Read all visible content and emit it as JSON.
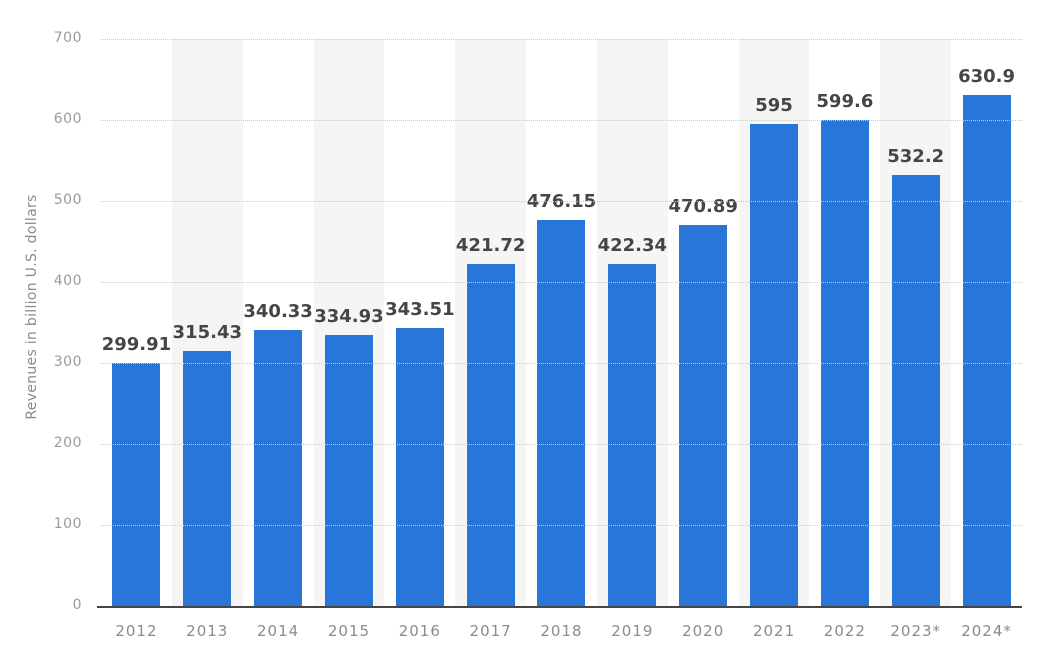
{
  "chart_data": {
    "type": "bar",
    "categories": [
      "2012",
      "2013",
      "2014",
      "2015",
      "2016",
      "2017",
      "2018",
      "2019",
      "2020",
      "2021",
      "2022",
      "2023*",
      "2024*"
    ],
    "values": [
      299.91,
      315.43,
      340.33,
      334.93,
      343.51,
      421.72,
      476.15,
      422.34,
      470.89,
      595,
      599.6,
      532.2,
      630.9
    ],
    "value_labels": [
      "299.91",
      "315.43",
      "340.33",
      "334.93",
      "343.51",
      "421.72",
      "476.15",
      "422.34",
      "470.89",
      "595",
      "599.6",
      "532.2",
      "630.9"
    ],
    "xlabel": "",
    "ylabel": "Revenues in billion U.S. dollars",
    "ylim": [
      0,
      700
    ],
    "yticks": [
      0,
      100,
      200,
      300,
      400,
      500,
      600,
      700
    ],
    "grid": "horizontal-dotted",
    "legend": "none",
    "stripe_pattern": "alternating columns, gray on 2013/2015/2017/2019/2021/2023*",
    "colors": {
      "bar": "#2776d8",
      "value_label": "#454545",
      "tick_label": "#9b9b9b",
      "x_label": "#8b8b8b",
      "axis_title": "#8b8b8b",
      "gridline": "#c9c9c9",
      "axis_line": "#454545",
      "stripe": "#f5f5f5",
      "background": "#ffffff"
    }
  }
}
